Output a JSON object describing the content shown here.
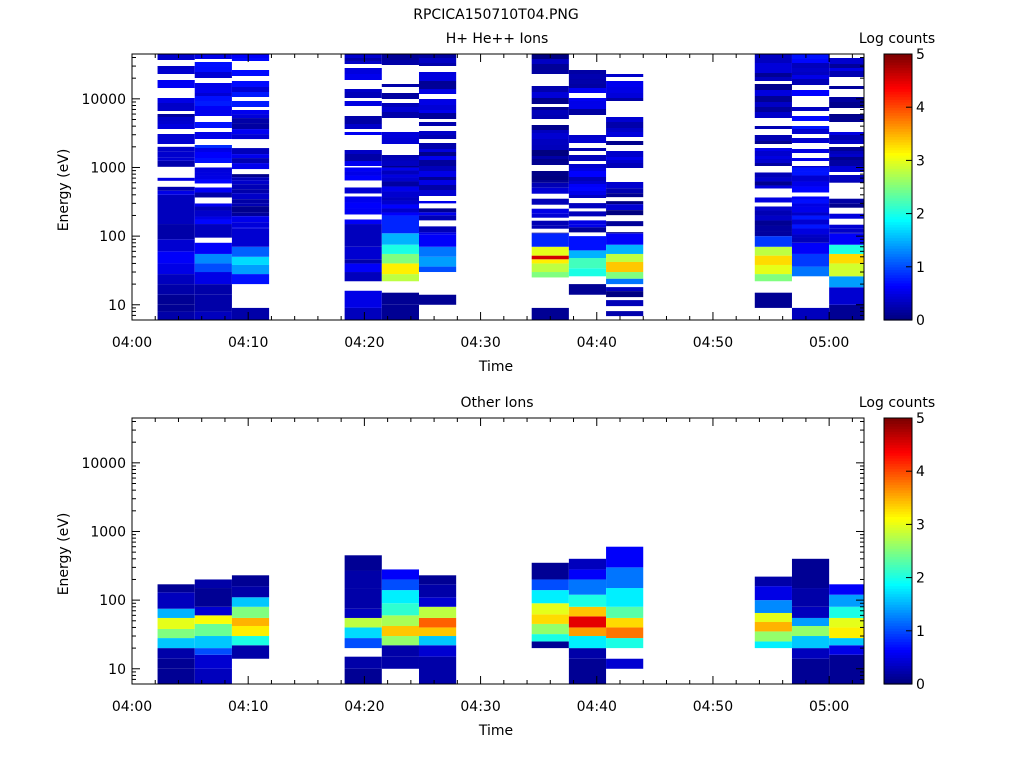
{
  "file_title": "RPCICA150710T04.PNG",
  "chart_data": [
    {
      "type": "heatmap",
      "title": "H+ He++ Ions",
      "xlabel": "Time",
      "ylabel": "Energy (eV)",
      "x_range_minutes": [
        0,
        63
      ],
      "x_ticks": [
        {
          "value": 0,
          "label": "04:00"
        },
        {
          "value": 10,
          "label": "04:10"
        },
        {
          "value": 20,
          "label": "04:20"
        },
        {
          "value": 30,
          "label": "04:30"
        },
        {
          "value": 40,
          "label": "04:40"
        },
        {
          "value": 50,
          "label": "04:50"
        },
        {
          "value": 60,
          "label": "05:00"
        }
      ],
      "y_scale": "log",
      "y_range": [
        6,
        45000
      ],
      "y_ticks": [
        {
          "value": 10,
          "label": "10"
        },
        {
          "value": 100,
          "label": "100"
        },
        {
          "value": 1000,
          "label": "1000"
        },
        {
          "value": 10000,
          "label": "10000"
        }
      ],
      "colorbar": {
        "label": "Log counts",
        "range": [
          0,
          5
        ],
        "ticks": [
          "0",
          "1",
          "2",
          "3",
          "4",
          "5"
        ]
      },
      "time_columns": [
        {
          "start": 2.2,
          "end": 5.4,
          "profile": "h_a"
        },
        {
          "start": 5.4,
          "end": 8.6,
          "profile": "h_b"
        },
        {
          "start": 8.6,
          "end": 11.8,
          "profile": "h_c"
        },
        {
          "start": 18.3,
          "end": 21.5,
          "profile": "h_d"
        },
        {
          "start": 21.5,
          "end": 24.7,
          "profile": "h_e"
        },
        {
          "start": 24.7,
          "end": 27.9,
          "profile": "h_f"
        },
        {
          "start": 34.4,
          "end": 37.6,
          "profile": "h_g"
        },
        {
          "start": 37.6,
          "end": 40.8,
          "profile": "h_h"
        },
        {
          "start": 40.8,
          "end": 44.0,
          "profile": "h_i"
        },
        {
          "start": 53.6,
          "end": 56.8,
          "profile": "h_j"
        },
        {
          "start": 56.8,
          "end": 60.0,
          "profile": "h_k"
        },
        {
          "start": 60.0,
          "end": 63.2,
          "profile": "h_l"
        }
      ]
    },
    {
      "type": "heatmap",
      "title": "Other Ions",
      "xlabel": "Time",
      "ylabel": "Energy (eV)",
      "x_range_minutes": [
        0,
        63
      ],
      "x_ticks": [
        {
          "value": 0,
          "label": "04:00"
        },
        {
          "value": 10,
          "label": "04:10"
        },
        {
          "value": 20,
          "label": "04:20"
        },
        {
          "value": 30,
          "label": "04:30"
        },
        {
          "value": 40,
          "label": "04:40"
        },
        {
          "value": 50,
          "label": "04:50"
        },
        {
          "value": 60,
          "label": "05:00"
        }
      ],
      "y_scale": "log",
      "y_range": [
        6,
        45000
      ],
      "y_ticks": [
        {
          "value": 10,
          "label": "10"
        },
        {
          "value": 100,
          "label": "100"
        },
        {
          "value": 1000,
          "label": "1000"
        },
        {
          "value": 10000,
          "label": "10000"
        }
      ],
      "colorbar": {
        "label": "Log counts",
        "range": [
          0,
          5
        ],
        "ticks": [
          "0",
          "1",
          "2",
          "3",
          "4",
          "5"
        ]
      },
      "time_columns": [
        {
          "start": 2.2,
          "end": 5.4,
          "profile": "o_a"
        },
        {
          "start": 5.4,
          "end": 8.6,
          "profile": "o_b"
        },
        {
          "start": 8.6,
          "end": 11.8,
          "profile": "o_c"
        },
        {
          "start": 18.3,
          "end": 21.5,
          "profile": "o_d"
        },
        {
          "start": 21.5,
          "end": 24.7,
          "profile": "o_e"
        },
        {
          "start": 24.7,
          "end": 27.9,
          "profile": "o_f"
        },
        {
          "start": 34.4,
          "end": 37.6,
          "profile": "o_g"
        },
        {
          "start": 37.6,
          "end": 40.8,
          "profile": "o_h"
        },
        {
          "start": 40.8,
          "end": 44.0,
          "profile": "o_i"
        },
        {
          "start": 53.6,
          "end": 56.8,
          "profile": "o_j"
        },
        {
          "start": 56.8,
          "end": 60.0,
          "profile": "o_k"
        },
        {
          "start": 60.0,
          "end": 63.2,
          "profile": "o_l"
        }
      ]
    }
  ],
  "profiles": {
    "h_a": [
      [
        6,
        8,
        0.2
      ],
      [
        8,
        10,
        0.1
      ],
      [
        10,
        14,
        0.1
      ],
      [
        14,
        20,
        0.2
      ],
      [
        20,
        28,
        0.3
      ],
      [
        28,
        40,
        0.5
      ],
      [
        40,
        60,
        0.6
      ],
      [
        60,
        90,
        0.4
      ],
      [
        90,
        150,
        0.2
      ],
      [
        150,
        400,
        0.3
      ],
      [
        400,
        2000,
        0.3
      ],
      [
        2000,
        45000,
        0.4
      ]
    ],
    "h_b": [
      [
        6,
        8,
        0.3
      ],
      [
        8,
        14,
        0.2
      ],
      [
        14,
        20,
        0.2
      ],
      [
        20,
        30,
        0.5
      ],
      [
        30,
        40,
        1.0
      ],
      [
        40,
        55,
        1.3
      ],
      [
        55,
        80,
        0.6
      ],
      [
        80,
        95,
        null
      ],
      [
        95,
        150,
        0.3
      ],
      [
        150,
        1000,
        0.4
      ],
      [
        1000,
        45000,
        0.6
      ]
    ],
    "h_c": [
      [
        6,
        9,
        0.2
      ],
      [
        9,
        20,
        null
      ],
      [
        20,
        28,
        0.7
      ],
      [
        28,
        38,
        1.4
      ],
      [
        38,
        50,
        1.7
      ],
      [
        50,
        70,
        1.1
      ],
      [
        70,
        130,
        0.4
      ],
      [
        130,
        800,
        0.3
      ],
      [
        800,
        6000,
        0.4
      ],
      [
        6000,
        45000,
        0.6
      ]
    ],
    "h_d": [
      [
        6,
        9,
        0.3
      ],
      [
        9,
        16,
        0.5
      ],
      [
        16,
        22,
        null
      ],
      [
        22,
        30,
        0.3
      ],
      [
        30,
        40,
        0.6
      ],
      [
        40,
        46,
        0.2
      ],
      [
        46,
        70,
        0.4
      ],
      [
        70,
        150,
        0.3
      ],
      [
        150,
        1000,
        0.5
      ],
      [
        1000,
        45000,
        0.4
      ]
    ],
    "h_e": [
      [
        6,
        10,
        0.1
      ],
      [
        10,
        15,
        0.1
      ],
      [
        15,
        22,
        null
      ],
      [
        22,
        28,
        2.8
      ],
      [
        28,
        40,
        3.2
      ],
      [
        40,
        55,
        2.5
      ],
      [
        55,
        75,
        2.0
      ],
      [
        75,
        110,
        1.5
      ],
      [
        110,
        200,
        0.8
      ],
      [
        200,
        1000,
        0.4
      ],
      [
        1000,
        45000,
        0.3
      ]
    ],
    "h_f": [
      [
        6,
        10,
        null
      ],
      [
        10,
        14,
        0.1
      ],
      [
        14,
        30,
        null
      ],
      [
        30,
        36,
        1.0
      ],
      [
        36,
        50,
        1.4
      ],
      [
        50,
        70,
        1.2
      ],
      [
        70,
        105,
        0.6
      ],
      [
        105,
        300,
        0.3
      ],
      [
        300,
        45000,
        0.3
      ]
    ],
    "h_g": [
      [
        6,
        9,
        0.1
      ],
      [
        9,
        25,
        null
      ],
      [
        25,
        30,
        2.5
      ],
      [
        30,
        40,
        2.8
      ],
      [
        40,
        46,
        3.2
      ],
      [
        46,
        52,
        4.6
      ],
      [
        52,
        70,
        3.0
      ],
      [
        70,
        110,
        0.8
      ],
      [
        110,
        600,
        0.3
      ],
      [
        600,
        45000,
        0.2
      ]
    ],
    "h_h": [
      [
        6,
        14,
        null
      ],
      [
        14,
        20,
        0.1
      ],
      [
        20,
        26,
        null
      ],
      [
        26,
        34,
        2.0
      ],
      [
        34,
        48,
        2.2
      ],
      [
        48,
        62,
        1.5
      ],
      [
        62,
        100,
        0.7
      ],
      [
        100,
        300,
        0.3
      ],
      [
        300,
        45000,
        0.4
      ]
    ],
    "h_i": [
      [
        6,
        20,
        0.1
      ],
      [
        20,
        24,
        1.2
      ],
      [
        24,
        30,
        2.5
      ],
      [
        30,
        42,
        3.4
      ],
      [
        42,
        55,
        2.8
      ],
      [
        55,
        75,
        1.5
      ],
      [
        75,
        110,
        0.6
      ],
      [
        110,
        500,
        0.2
      ],
      [
        500,
        45000,
        0.3
      ]
    ],
    "h_j": [
      [
        6,
        9,
        null
      ],
      [
        9,
        15,
        0.1
      ],
      [
        15,
        22,
        null
      ],
      [
        22,
        28,
        2.5
      ],
      [
        28,
        38,
        3.0
      ],
      [
        38,
        52,
        3.3
      ],
      [
        52,
        70,
        2.8
      ],
      [
        70,
        100,
        0.9
      ],
      [
        100,
        1000,
        0.3
      ],
      [
        1000,
        45000,
        0.3
      ]
    ],
    "h_k": [
      [
        6,
        9,
        0.3
      ],
      [
        9,
        26,
        null
      ],
      [
        26,
        36,
        1.2
      ],
      [
        36,
        55,
        0.9
      ],
      [
        55,
        80,
        0.6
      ],
      [
        80,
        1000,
        0.5
      ],
      [
        1000,
        45000,
        0.5
      ]
    ],
    "h_l": [
      [
        6,
        10,
        0.1
      ],
      [
        10,
        18,
        0.4
      ],
      [
        18,
        26,
        1.4
      ],
      [
        26,
        40,
        2.9
      ],
      [
        40,
        55,
        3.3
      ],
      [
        55,
        75,
        2.0
      ],
      [
        75,
        110,
        0.6
      ],
      [
        110,
        600,
        0.3
      ],
      [
        600,
        45000,
        0.3
      ]
    ],
    "o_a": [
      [
        6,
        10,
        0.1
      ],
      [
        10,
        14,
        0.1
      ],
      [
        14,
        20,
        0.2
      ],
      [
        20,
        28,
        1.6
      ],
      [
        28,
        38,
        2.5
      ],
      [
        38,
        55,
        3.0
      ],
      [
        55,
        75,
        1.5
      ],
      [
        75,
        130,
        0.3
      ],
      [
        130,
        170,
        0.1
      ]
    ],
    "o_b": [
      [
        6,
        10,
        0.3
      ],
      [
        10,
        16,
        0.4
      ],
      [
        16,
        20,
        1.0
      ],
      [
        20,
        30,
        1.6
      ],
      [
        30,
        45,
        2.4
      ],
      [
        45,
        60,
        3.1
      ],
      [
        60,
        80,
        0.4
      ],
      [
        80,
        150,
        0.1
      ],
      [
        150,
        200,
        0.2
      ]
    ],
    "o_c": [
      [
        6,
        14,
        null
      ],
      [
        14,
        22,
        0.2
      ],
      [
        22,
        30,
        2.0
      ],
      [
        30,
        42,
        3.2
      ],
      [
        42,
        55,
        3.5
      ],
      [
        55,
        80,
        2.5
      ],
      [
        80,
        110,
        1.6
      ],
      [
        110,
        160,
        0.2
      ],
      [
        160,
        230,
        0.1
      ]
    ],
    "o_d": [
      [
        6,
        10,
        0.1
      ],
      [
        10,
        15,
        0.2
      ],
      [
        15,
        20,
        null
      ],
      [
        20,
        28,
        1.0
      ],
      [
        28,
        40,
        1.7
      ],
      [
        40,
        55,
        2.8
      ],
      [
        55,
        75,
        0.3
      ],
      [
        75,
        150,
        0.2
      ],
      [
        150,
        270,
        0.2
      ],
      [
        270,
        450,
        0.1
      ]
    ],
    "o_e": [
      [
        6,
        10,
        null
      ],
      [
        10,
        15,
        0.2
      ],
      [
        15,
        22,
        0.2
      ],
      [
        22,
        30,
        2.6
      ],
      [
        30,
        42,
        3.4
      ],
      [
        42,
        60,
        2.7
      ],
      [
        60,
        90,
        2.1
      ],
      [
        90,
        140,
        1.8
      ],
      [
        140,
        200,
        1.0
      ],
      [
        200,
        280,
        0.6
      ]
    ],
    "o_f": [
      [
        6,
        15,
        0.2
      ],
      [
        15,
        22,
        0.4
      ],
      [
        22,
        30,
        1.6
      ],
      [
        30,
        40,
        3.4
      ],
      [
        40,
        55,
        3.9
      ],
      [
        55,
        80,
        2.8
      ],
      [
        80,
        110,
        0.4
      ],
      [
        110,
        170,
        0.2
      ],
      [
        170,
        230,
        0.1
      ]
    ],
    "o_g": [
      [
        6,
        20,
        null
      ],
      [
        20,
        25,
        0.1
      ],
      [
        25,
        32,
        2.0
      ],
      [
        32,
        45,
        2.6
      ],
      [
        45,
        62,
        3.3
      ],
      [
        62,
        90,
        3.0
      ],
      [
        90,
        140,
        1.8
      ],
      [
        140,
        200,
        1.0
      ],
      [
        200,
        350,
        0.1
      ]
    ],
    "o_h": [
      [
        6,
        14,
        0.1
      ],
      [
        14,
        20,
        0.2
      ],
      [
        20,
        30,
        1.8
      ],
      [
        30,
        40,
        3.6
      ],
      [
        40,
        58,
        4.5
      ],
      [
        58,
        80,
        3.4
      ],
      [
        80,
        120,
        2.0
      ],
      [
        120,
        200,
        1.2
      ],
      [
        200,
        280,
        0.6
      ],
      [
        280,
        400,
        0.3
      ]
    ],
    "o_i": [
      [
        6,
        10,
        null
      ],
      [
        10,
        14,
        0.4
      ],
      [
        14,
        20,
        null
      ],
      [
        20,
        28,
        2.0
      ],
      [
        28,
        40,
        3.8
      ],
      [
        40,
        55,
        3.3
      ],
      [
        55,
        80,
        2.3
      ],
      [
        80,
        150,
        1.8
      ],
      [
        150,
        300,
        1.2
      ],
      [
        300,
        600,
        0.6
      ]
    ],
    "o_j": [
      [
        6,
        20,
        null
      ],
      [
        20,
        25,
        1.8
      ],
      [
        25,
        35,
        2.6
      ],
      [
        35,
        48,
        3.5
      ],
      [
        48,
        65,
        3.0
      ],
      [
        65,
        100,
        1.3
      ],
      [
        100,
        160,
        0.5
      ],
      [
        160,
        220,
        0.2
      ]
    ],
    "o_k": [
      [
        6,
        14,
        0.1
      ],
      [
        14,
        20,
        0.3
      ],
      [
        20,
        30,
        1.6
      ],
      [
        30,
        42,
        2.6
      ],
      [
        42,
        55,
        1.4
      ],
      [
        55,
        80,
        0.3
      ],
      [
        80,
        150,
        0.2
      ],
      [
        150,
        400,
        0.1
      ]
    ],
    "o_l": [
      [
        6,
        16,
        0.1
      ],
      [
        16,
        22,
        0.5
      ],
      [
        22,
        28,
        1.6
      ],
      [
        28,
        40,
        3.2
      ],
      [
        40,
        55,
        3.0
      ],
      [
        55,
        80,
        2.0
      ],
      [
        80,
        120,
        1.4
      ],
      [
        120,
        170,
        0.6
      ]
    ]
  }
}
